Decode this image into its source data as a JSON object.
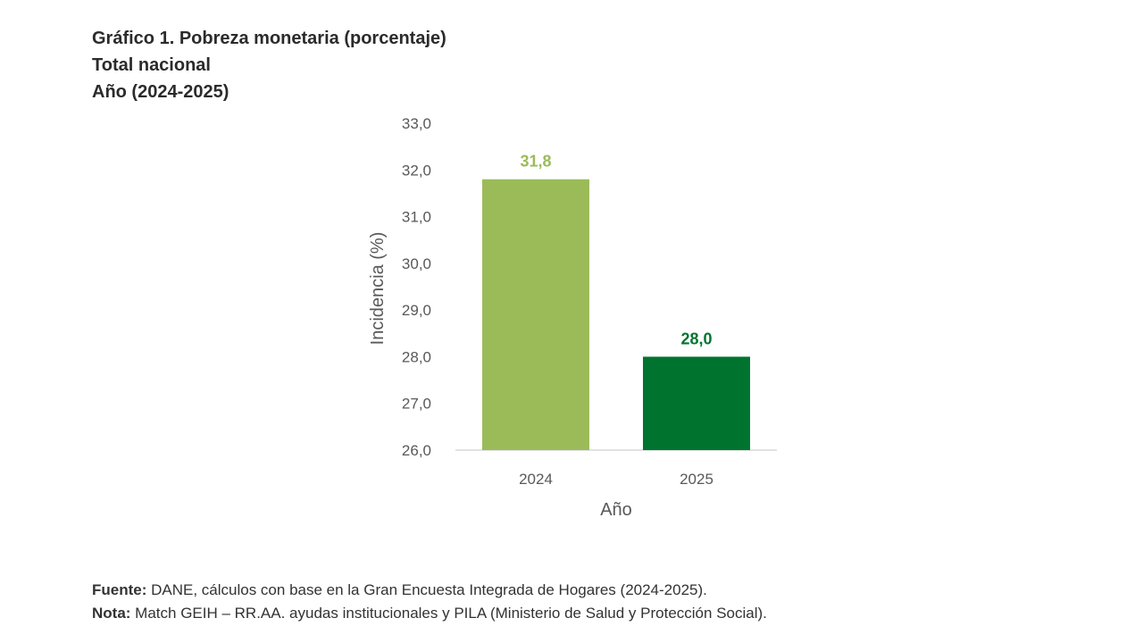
{
  "header": {
    "title": "Gráfico 1. Pobreza monetaria (porcentaje)",
    "subtitle1": "Total nacional",
    "subtitle2": "Año (2024-2025)"
  },
  "colors": {
    "bar_2024": "#9bbb59",
    "bar_2025": "#00742f",
    "axis_text": "#595959"
  },
  "chart_data": {
    "type": "bar",
    "categories": [
      "2024",
      "2025"
    ],
    "values": [
      31.8,
      28.0
    ],
    "data_labels": [
      "31,8",
      "28,0"
    ],
    "xlabel": "Año",
    "ylabel": "Incidencia (%)",
    "ylim": [
      26.0,
      33.0
    ],
    "yticks": [
      26.0,
      27.0,
      28.0,
      29.0,
      30.0,
      31.0,
      32.0,
      33.0
    ],
    "ytick_labels": [
      "26,0",
      "27,0",
      "28,0",
      "29,0",
      "30,0",
      "31,0",
      "32,0",
      "33,0"
    ],
    "grid": false,
    "legend": "none"
  },
  "footer": {
    "source_label": "Fuente:",
    "source_text": " DANE, cálculos con base en la Gran Encuesta Integrada de Hogares (2024-2025).",
    "note_label": "Nota:",
    "note_text": " Match GEIH – RR.AA. ayudas institucionales y PILA (Ministerio de Salud y Protección Social)."
  }
}
